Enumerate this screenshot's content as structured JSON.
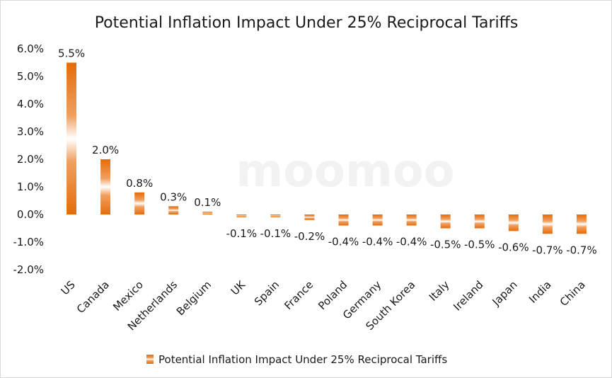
{
  "watermark": "moomoo",
  "chart_data": {
    "type": "bar",
    "title": "Potential Inflation Impact Under 25% Reciprocal Tariffs",
    "categories": [
      "US",
      "Canada",
      "Mexico",
      "Netherlands",
      "Belgium",
      "UK",
      "Spain",
      "France",
      "Poland",
      "Germany",
      "South Korea",
      "Italy",
      "Ireland",
      "Japan",
      "India",
      "China"
    ],
    "series": [
      {
        "name": "Potential Inflation Impact Under 25% Reciprocal Tariffs",
        "values": [
          5.5,
          2.0,
          0.8,
          0.3,
          0.1,
          -0.1,
          -0.1,
          -0.2,
          -0.4,
          -0.4,
          -0.4,
          -0.5,
          -0.5,
          -0.6,
          -0.7,
          -0.7
        ],
        "labels": [
          "5.5%",
          "2.0%",
          "0.8%",
          "0.3%",
          "0.1%",
          "-0.1%",
          "-0.1%",
          "-0.2%",
          "-0.4%",
          "-0.4%",
          "-0.4%",
          "-0.5%",
          "-0.5%",
          "-0.6%",
          "-0.7%",
          "-0.7%"
        ]
      }
    ],
    "ylim": [
      -2.0,
      6.0
    ],
    "yticks": [
      6.0,
      5.0,
      4.0,
      3.0,
      2.0,
      1.0,
      0.0,
      -1.0,
      -2.0
    ],
    "ytick_labels": [
      "6.0%",
      "5.0%",
      "4.0%",
      "3.0%",
      "2.0%",
      "1.0%",
      "0.0%",
      "-1.0%",
      "-2.0%"
    ],
    "grid": false,
    "legend_position": "bottom",
    "colors": {
      "bar": "#e46c0a",
      "bar_light": "#ffffff"
    }
  }
}
